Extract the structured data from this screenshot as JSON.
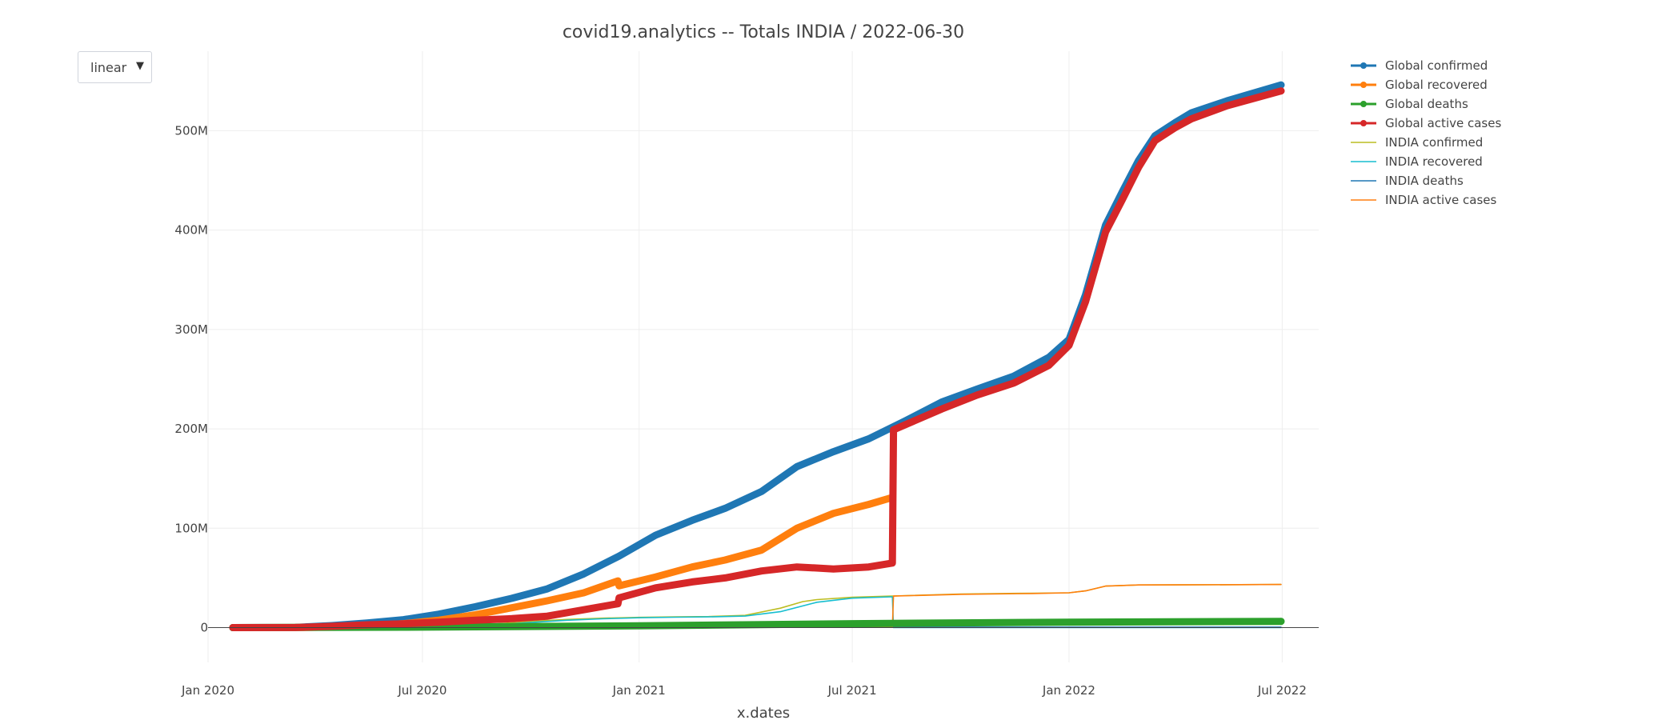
{
  "updatemenu": {
    "selected": "linear"
  },
  "chart_data": {
    "type": "line",
    "title": "covid19.analytics -- Totals  INDIA  /  2022-06-30",
    "xlabel": "x.dates",
    "ylabel": "",
    "xlim": [
      "2020-01-01",
      "2022-08-01"
    ],
    "ylim": [
      -35,
      580
    ],
    "y_units": "millions",
    "x_ticks": [
      {
        "date": "2020-01-01",
        "label": "Jan 2020"
      },
      {
        "date": "2020-07-01",
        "label": "Jul 2020"
      },
      {
        "date": "2021-01-01",
        "label": "Jan 2021"
      },
      {
        "date": "2021-07-01",
        "label": "Jul 2021"
      },
      {
        "date": "2022-01-01",
        "label": "Jan 2022"
      },
      {
        "date": "2022-07-01",
        "label": "Jul 2022"
      }
    ],
    "y_ticks": [
      {
        "value": 0,
        "label": "0"
      },
      {
        "value": 100,
        "label": "100M"
      },
      {
        "value": 200,
        "label": "200M"
      },
      {
        "value": 300,
        "label": "300M"
      },
      {
        "value": 400,
        "label": "400M"
      },
      {
        "value": 500,
        "label": "500M"
      }
    ],
    "grid": true,
    "legend_position": "top-right",
    "series": [
      {
        "name": "Global confirmed",
        "color": "#1f77b4",
        "style": "thick-markers",
        "points": [
          [
            "2020-01-22",
            0
          ],
          [
            "2020-03-15",
            0.2
          ],
          [
            "2020-04-15",
            2
          ],
          [
            "2020-05-15",
            4.6
          ],
          [
            "2020-06-15",
            8
          ],
          [
            "2020-07-15",
            13.5
          ],
          [
            "2020-08-15",
            21
          ],
          [
            "2020-09-15",
            29.5
          ],
          [
            "2020-10-15",
            39
          ],
          [
            "2020-11-15",
            54
          ],
          [
            "2020-12-15",
            72
          ],
          [
            "2021-01-15",
            93
          ],
          [
            "2021-02-15",
            108
          ],
          [
            "2021-03-15",
            120
          ],
          [
            "2021-04-15",
            137
          ],
          [
            "2021-05-15",
            162
          ],
          [
            "2021-06-15",
            177
          ],
          [
            "2021-07-15",
            190
          ],
          [
            "2021-08-15",
            208
          ],
          [
            "2021-09-15",
            227
          ],
          [
            "2021-10-15",
            240
          ],
          [
            "2021-11-15",
            253
          ],
          [
            "2021-12-15",
            272
          ],
          [
            "2022-01-01",
            290
          ],
          [
            "2022-01-15",
            335
          ],
          [
            "2022-02-01",
            405
          ],
          [
            "2022-02-15",
            438
          ],
          [
            "2022-03-01",
            470
          ],
          [
            "2022-03-15",
            495
          ],
          [
            "2022-04-01",
            508
          ],
          [
            "2022-04-15",
            518
          ],
          [
            "2022-05-15",
            530
          ],
          [
            "2022-06-30",
            546
          ]
        ]
      },
      {
        "name": "Global recovered",
        "color": "#ff7f0e",
        "style": "thick-markers",
        "points": [
          [
            "2020-01-22",
            0
          ],
          [
            "2020-03-15",
            0.1
          ],
          [
            "2020-04-15",
            0.6
          ],
          [
            "2020-05-15",
            1.7
          ],
          [
            "2020-06-15",
            4
          ],
          [
            "2020-07-15",
            7.5
          ],
          [
            "2020-08-15",
            13
          ],
          [
            "2020-09-15",
            20
          ],
          [
            "2020-10-15",
            27
          ],
          [
            "2020-11-15",
            35
          ],
          [
            "2020-12-14",
            47
          ],
          [
            "2020-12-15",
            42
          ],
          [
            "2021-01-15",
            51
          ],
          [
            "2021-02-15",
            61
          ],
          [
            "2021-03-15",
            68
          ],
          [
            "2021-04-15",
            78
          ],
          [
            "2021-05-15",
            100
          ],
          [
            "2021-06-15",
            115
          ],
          [
            "2021-07-15",
            124
          ],
          [
            "2021-08-04",
            131
          ]
        ]
      },
      {
        "name": "Global deaths",
        "color": "#2ca02c",
        "style": "thick-markers",
        "points": [
          [
            "2020-01-22",
            0
          ],
          [
            "2020-06-15",
            0.4
          ],
          [
            "2021-01-01",
            1.8
          ],
          [
            "2021-07-01",
            4
          ],
          [
            "2022-01-01",
            5.5
          ],
          [
            "2022-06-30",
            6.3
          ]
        ]
      },
      {
        "name": "Global active cases",
        "color": "#d62728",
        "style": "thick-markers",
        "points": [
          [
            "2020-01-22",
            0
          ],
          [
            "2020-03-15",
            0.1
          ],
          [
            "2020-04-15",
            1.3
          ],
          [
            "2020-05-15",
            2.8
          ],
          [
            "2020-06-15",
            3.9
          ],
          [
            "2020-07-15",
            5.5
          ],
          [
            "2020-08-15",
            7.5
          ],
          [
            "2020-09-15",
            9
          ],
          [
            "2020-10-15",
            11.5
          ],
          [
            "2020-11-15",
            18
          ],
          [
            "2020-12-14",
            24
          ],
          [
            "2020-12-15",
            30
          ],
          [
            "2021-01-15",
            40
          ],
          [
            "2021-02-15",
            46
          ],
          [
            "2021-03-15",
            50
          ],
          [
            "2021-04-15",
            57
          ],
          [
            "2021-05-15",
            61
          ],
          [
            "2021-06-15",
            59
          ],
          [
            "2021-07-15",
            61
          ],
          [
            "2021-08-04",
            65
          ],
          [
            "2021-08-05",
            199
          ],
          [
            "2021-09-15",
            220
          ],
          [
            "2021-10-15",
            234
          ],
          [
            "2021-11-15",
            246
          ],
          [
            "2021-12-15",
            264
          ],
          [
            "2022-01-01",
            284
          ],
          [
            "2022-01-15",
            328
          ],
          [
            "2022-02-01",
            398
          ],
          [
            "2022-02-15",
            430
          ],
          [
            "2022-03-01",
            463
          ],
          [
            "2022-03-15",
            490
          ],
          [
            "2022-04-01",
            503
          ],
          [
            "2022-04-15",
            512
          ],
          [
            "2022-05-15",
            525
          ],
          [
            "2022-06-30",
            540
          ]
        ]
      },
      {
        "name": "INDIA confirmed",
        "color": "#bcbd22",
        "style": "thin",
        "points": [
          [
            "2020-01-30",
            0
          ],
          [
            "2020-06-01",
            0.2
          ],
          [
            "2020-07-01",
            0.6
          ],
          [
            "2020-08-01",
            1.7
          ],
          [
            "2020-09-01",
            3.7
          ],
          [
            "2020-10-01",
            6.3
          ],
          [
            "2020-11-01",
            8.2
          ],
          [
            "2020-12-01",
            9.5
          ],
          [
            "2021-01-01",
            10.3
          ],
          [
            "2021-02-01",
            10.8
          ],
          [
            "2021-03-01",
            11.1
          ],
          [
            "2021-04-01",
            12.3
          ],
          [
            "2021-05-01",
            19.6
          ],
          [
            "2021-05-20",
            26.2
          ],
          [
            "2021-06-01",
            28.2
          ],
          [
            "2021-07-01",
            30.5
          ],
          [
            "2021-08-04",
            31.8
          ],
          [
            "2021-10-01",
            33.8
          ],
          [
            "2021-12-01",
            34.6
          ],
          [
            "2022-01-01",
            35
          ],
          [
            "2022-01-15",
            37
          ],
          [
            "2022-02-01",
            41.8
          ],
          [
            "2022-03-01",
            42.9
          ],
          [
            "2022-04-01",
            43
          ],
          [
            "2022-06-30",
            43.4
          ]
        ]
      },
      {
        "name": "INDIA recovered",
        "color": "#17becf",
        "style": "thin",
        "points": [
          [
            "2020-01-30",
            0
          ],
          [
            "2020-06-01",
            0.1
          ],
          [
            "2020-07-01",
            0.35
          ],
          [
            "2020-08-01",
            1.1
          ],
          [
            "2020-09-01",
            2.8
          ],
          [
            "2020-10-01",
            5.2
          ],
          [
            "2020-11-01",
            7.4
          ],
          [
            "2020-12-01",
            8.9
          ],
          [
            "2021-01-01",
            9.9
          ],
          [
            "2021-02-01",
            10.5
          ],
          [
            "2021-03-01",
            10.8
          ],
          [
            "2021-04-01",
            11.6
          ],
          [
            "2021-05-01",
            16
          ],
          [
            "2021-06-01",
            25.5
          ],
          [
            "2021-07-01",
            29.6
          ],
          [
            "2021-08-04",
            31
          ],
          [
            "2021-08-05",
            0
          ],
          [
            "2022-06-30",
            0
          ]
        ]
      },
      {
        "name": "INDIA deaths",
        "color": "#1f77b4",
        "style": "thin",
        "points": [
          [
            "2020-01-30",
            0
          ],
          [
            "2021-01-01",
            0.15
          ],
          [
            "2021-07-01",
            0.4
          ],
          [
            "2022-01-01",
            0.48
          ],
          [
            "2022-06-30",
            0.52
          ]
        ]
      },
      {
        "name": "INDIA active cases",
        "color": "#ff7f0e",
        "style": "thin",
        "points": [
          [
            "2020-01-30",
            0
          ],
          [
            "2020-08-01",
            0.6
          ],
          [
            "2020-09-15",
            1
          ],
          [
            "2020-12-01",
            0.4
          ],
          [
            "2021-03-01",
            0.2
          ],
          [
            "2021-05-05",
            3.7
          ],
          [
            "2021-06-15",
            1
          ],
          [
            "2021-08-04",
            0.4
          ],
          [
            "2021-08-05",
            31.7
          ],
          [
            "2021-10-01",
            33.5
          ],
          [
            "2021-12-01",
            34.3
          ],
          [
            "2022-01-01",
            35
          ],
          [
            "2022-01-15",
            37
          ],
          [
            "2022-02-01",
            41.8
          ],
          [
            "2022-03-01",
            42.9
          ],
          [
            "2022-04-01",
            43
          ],
          [
            "2022-06-30",
            43.4
          ]
        ]
      }
    ]
  }
}
